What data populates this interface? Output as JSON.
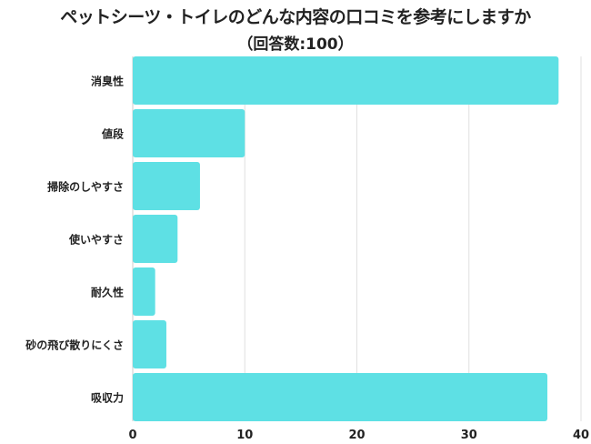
{
  "chart_data": {
    "type": "bar",
    "orientation": "horizontal",
    "title": "ペットシーツ・トイレのどんな内容の口コミを参考にしますか",
    "subtitle": "（回答数:100）",
    "categories": [
      "消臭性",
      "値段",
      "掃除のしやすさ",
      "使いやすさ",
      "耐久性",
      "砂の飛び散りにくさ",
      "吸収力"
    ],
    "values": [
      38,
      10,
      6,
      4,
      2,
      3,
      37
    ],
    "xlim": [
      0,
      40
    ],
    "xticks": [
      0,
      10,
      20,
      30,
      40
    ],
    "xlabel": "",
    "ylabel": "",
    "grid": true,
    "bar_color": "#5ee0e4"
  }
}
